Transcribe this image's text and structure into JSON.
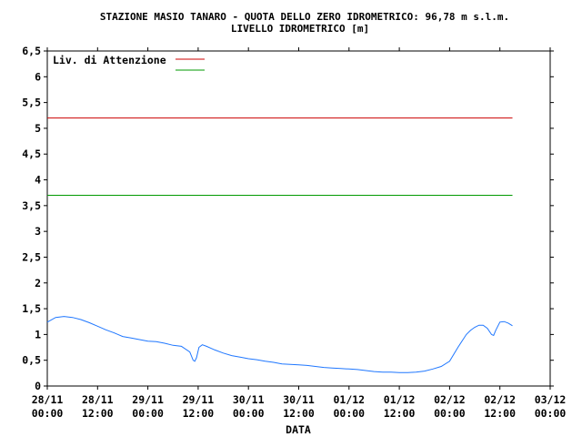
{
  "chart_data": {
    "type": "line",
    "title": "STAZIONE MASIO TANARO - QUOTA DELLO ZERO IDROMETRICO: 96,78 m s.l.m.",
    "subtitle": "LIVELLO IDROMETRICO [m]",
    "xlabel": "DATA",
    "ylabel": "",
    "ylim": [
      0,
      6.5
    ],
    "y_ticks": [
      "0",
      "0,5",
      "1",
      "1,5",
      "2",
      "2,5",
      "3",
      "3,5",
      "4",
      "4,5",
      "5",
      "5,5",
      "6",
      "6,5"
    ],
    "x_ticks": [
      {
        "date": "28/11",
        "time": "00:00"
      },
      {
        "date": "28/11",
        "time": "12:00"
      },
      {
        "date": "29/11",
        "time": "00:00"
      },
      {
        "date": "29/11",
        "time": "12:00"
      },
      {
        "date": "30/11",
        "time": "00:00"
      },
      {
        "date": "30/11",
        "time": "12:00"
      },
      {
        "date": "01/12",
        "time": "00:00"
      },
      {
        "date": "01/12",
        "time": "12:00"
      },
      {
        "date": "02/12",
        "time": "00:00"
      },
      {
        "date": "02/12",
        "time": "12:00"
      },
      {
        "date": "03/12",
        "time": "00:00"
      }
    ],
    "x_unit": "hours from 28/11 00:00",
    "xlim": [
      0,
      120
    ],
    "grid": false,
    "legend": [
      {
        "label": "Liv. di Attenzione",
        "color": "#cc0000"
      },
      {
        "label": "",
        "color": "#009900"
      }
    ],
    "thresholds": [
      {
        "name": "Liv. di Attenzione",
        "value": 5.2,
        "x_end": 111,
        "color": "#cc0000"
      },
      {
        "name": "",
        "value": 3.7,
        "x_end": 111,
        "color": "#009900"
      }
    ],
    "series": [
      {
        "name": "",
        "color": "#1f77ff",
        "x": [
          0,
          2,
          4,
          6,
          8,
          10,
          12,
          14,
          16,
          18,
          20,
          22,
          24,
          26,
          28,
          30,
          32,
          34,
          34.8,
          35.2,
          35.6,
          36.2,
          37,
          38,
          40,
          42,
          44,
          46,
          48,
          50,
          52,
          54,
          56,
          58,
          60,
          62,
          64,
          66,
          68,
          70,
          72,
          74,
          76,
          78,
          80,
          82,
          84,
          86,
          88,
          90,
          92,
          94,
          96,
          98,
          100,
          101,
          102,
          103,
          104,
          105,
          106,
          106.5,
          107,
          108,
          109,
          110,
          111
        ],
        "values": [
          1.24,
          1.33,
          1.35,
          1.33,
          1.29,
          1.23,
          1.16,
          1.09,
          1.03,
          0.96,
          0.93,
          0.9,
          0.87,
          0.86,
          0.83,
          0.79,
          0.77,
          0.66,
          0.5,
          0.48,
          0.55,
          0.75,
          0.8,
          0.77,
          0.7,
          0.64,
          0.59,
          0.56,
          0.53,
          0.51,
          0.48,
          0.46,
          0.43,
          0.42,
          0.41,
          0.4,
          0.38,
          0.36,
          0.35,
          0.34,
          0.33,
          0.32,
          0.3,
          0.28,
          0.27,
          0.27,
          0.26,
          0.26,
          0.27,
          0.29,
          0.33,
          0.38,
          0.48,
          0.75,
          1.0,
          1.08,
          1.14,
          1.18,
          1.18,
          1.12,
          1.0,
          0.98,
          1.08,
          1.24,
          1.25,
          1.22,
          1.17
        ]
      }
    ]
  }
}
